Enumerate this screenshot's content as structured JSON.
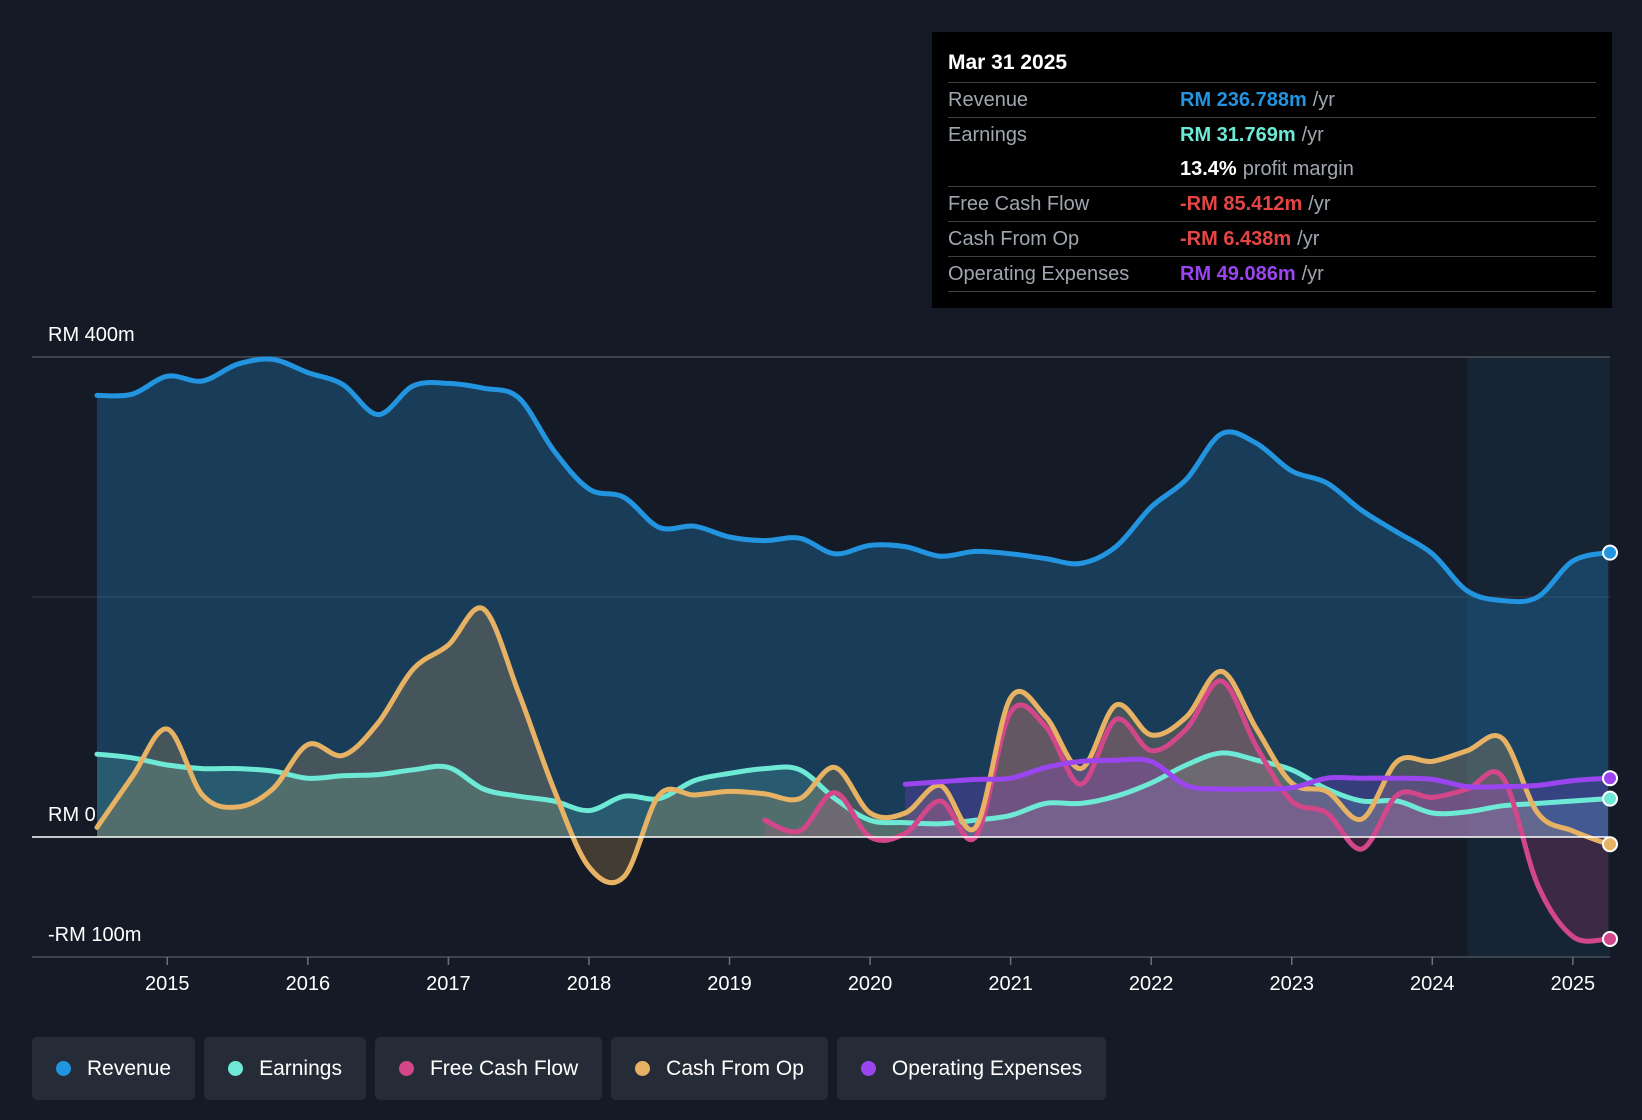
{
  "tooltip": {
    "date": "Mar 31 2025",
    "rows": {
      "revenue": {
        "label": "Revenue",
        "value": "RM 236.788m",
        "unit": "/yr"
      },
      "earnings": {
        "label": "Earnings",
        "value": "RM 31.769m",
        "unit": "/yr"
      },
      "margin": {
        "value": "13.4%",
        "unit": "profit margin"
      },
      "fcf": {
        "label": "Free Cash Flow",
        "value": "-RM 85.412m",
        "unit": "/yr"
      },
      "cfo": {
        "label": "Cash From Op",
        "value": "-RM 6.438m",
        "unit": "/yr"
      },
      "opex": {
        "label": "Operating Expenses",
        "value": "RM 49.086m",
        "unit": "/yr"
      }
    }
  },
  "legend": {
    "revenue": "Revenue",
    "earnings": "Earnings",
    "fcf": "Free Cash Flow",
    "cfo": "Cash From Op",
    "opex": "Operating Expenses"
  },
  "colors": {
    "revenue": "#2394df",
    "earnings": "#6ee9d5",
    "fcf": "#d2468a",
    "cfo": "#e7b264",
    "opex": "#9b45f0",
    "negative": "#e64545",
    "white": "#ffffff"
  },
  "chart_data": {
    "type": "line",
    "title": "",
    "xlabel": "",
    "ylabel": "",
    "xlim": [
      2014.5,
      2025.25
    ],
    "ylim": [
      -100,
      400
    ],
    "y_labels": [
      "RM 400m",
      "RM 0",
      "-RM 100m"
    ],
    "y_label_values": [
      400,
      0,
      -100
    ],
    "x_ticks": [
      "2015",
      "2016",
      "2017",
      "2018",
      "2019",
      "2020",
      "2021",
      "2022",
      "2023",
      "2024",
      "2025"
    ],
    "x_tick_values": [
      2015,
      2016,
      2017,
      2018,
      2019,
      2020,
      2021,
      2022,
      2023,
      2024,
      2025
    ],
    "highlight_start": 2024.25,
    "series": [
      {
        "name": "Revenue",
        "key": "revenue",
        "x": [
          2014.5,
          2014.75,
          2015.0,
          2015.25,
          2015.5,
          2015.75,
          2016.0,
          2016.25,
          2016.5,
          2016.75,
          2017.0,
          2017.25,
          2017.5,
          2017.75,
          2018.0,
          2018.25,
          2018.5,
          2018.75,
          2019.0,
          2019.25,
          2019.5,
          2019.75,
          2020.0,
          2020.25,
          2020.5,
          2020.75,
          2021.0,
          2021.25,
          2021.5,
          2021.75,
          2022.0,
          2022.25,
          2022.5,
          2022.75,
          2023.0,
          2023.25,
          2023.5,
          2023.75,
          2024.0,
          2024.25,
          2024.5,
          2024.75,
          2025.0,
          2025.25
        ],
        "values": [
          368,
          369,
          384,
          380,
          394,
          398,
          387,
          377,
          352,
          376,
          378,
          374,
          366,
          322,
          290,
          283,
          258,
          259,
          250,
          247,
          249,
          236,
          243,
          242,
          234,
          238,
          236,
          232,
          228,
          242,
          275,
          298,
          336,
          328,
          305,
          295,
          272,
          254,
          236,
          205,
          197,
          200,
          230,
          237
        ]
      },
      {
        "name": "Earnings",
        "key": "earnings",
        "x": [
          2014.5,
          2014.75,
          2015.0,
          2015.25,
          2015.5,
          2015.75,
          2016.0,
          2016.25,
          2016.5,
          2016.75,
          2017.0,
          2017.25,
          2017.5,
          2017.75,
          2018.0,
          2018.25,
          2018.5,
          2018.75,
          2019.0,
          2019.25,
          2019.5,
          2019.75,
          2020.0,
          2020.25,
          2020.5,
          2020.75,
          2021.0,
          2021.25,
          2021.5,
          2021.75,
          2022.0,
          2022.25,
          2022.5,
          2022.75,
          2023.0,
          2023.25,
          2023.5,
          2023.75,
          2024.0,
          2024.25,
          2024.5,
          2024.75,
          2025.0,
          2025.25
        ],
        "values": [
          69,
          66,
          60,
          57,
          57,
          55,
          49,
          51,
          52,
          56,
          58,
          40,
          34,
          30,
          22,
          34,
          32,
          47,
          53,
          57,
          56,
          32,
          14,
          12,
          11,
          14,
          18,
          28,
          28,
          34,
          45,
          60,
          70,
          64,
          56,
          40,
          30,
          30,
          20,
          21,
          26,
          28,
          30,
          32
        ]
      },
      {
        "name": "Free Cash Flow",
        "key": "fcf",
        "x": [
          2019.25,
          2019.5,
          2019.75,
          2020.0,
          2020.25,
          2020.5,
          2020.75,
          2021.0,
          2021.25,
          2021.5,
          2021.75,
          2022.0,
          2022.25,
          2022.5,
          2022.75,
          2023.0,
          2023.25,
          2023.5,
          2023.75,
          2024.0,
          2024.25,
          2024.5,
          2024.75,
          2025.0,
          2025.25
        ],
        "values": [
          14,
          5,
          37,
          0,
          3,
          30,
          0,
          104,
          92,
          44,
          98,
          72,
          90,
          130,
          75,
          30,
          20,
          -10,
          35,
          33,
          40,
          50,
          -40,
          -83,
          -85
        ]
      },
      {
        "name": "Cash From Op",
        "key": "cfo",
        "x": [
          2014.5,
          2014.75,
          2015.0,
          2015.25,
          2015.5,
          2015.75,
          2016.0,
          2016.25,
          2016.5,
          2016.75,
          2017.0,
          2017.25,
          2017.5,
          2017.75,
          2018.0,
          2018.25,
          2018.5,
          2018.75,
          2019.0,
          2019.25,
          2019.5,
          2019.75,
          2020.0,
          2020.25,
          2020.5,
          2020.75,
          2021.0,
          2021.25,
          2021.5,
          2021.75,
          2022.0,
          2022.25,
          2022.5,
          2022.75,
          2023.0,
          2023.25,
          2023.5,
          2023.75,
          2024.0,
          2024.25,
          2024.5,
          2024.75,
          2025.0,
          2025.25
        ],
        "values": [
          8,
          50,
          90,
          35,
          25,
          40,
          77,
          68,
          95,
          140,
          160,
          190,
          120,
          40,
          -25,
          -33,
          35,
          35,
          38,
          36,
          32,
          58,
          20,
          20,
          43,
          8,
          116,
          100,
          57,
          110,
          85,
          100,
          138,
          90,
          45,
          38,
          15,
          63,
          63,
          72,
          82,
          20,
          5,
          -6
        ]
      },
      {
        "name": "Operating Expenses",
        "key": "opex",
        "x": [
          2020.25,
          2020.5,
          2020.75,
          2021.0,
          2021.25,
          2021.5,
          2021.75,
          2022.0,
          2022.25,
          2022.5,
          2022.75,
          2023.0,
          2023.25,
          2023.5,
          2023.75,
          2024.0,
          2024.25,
          2024.5,
          2024.75,
          2025.0,
          2025.25
        ],
        "values": [
          44,
          46,
          48,
          49,
          58,
          63,
          64,
          63,
          43,
          40,
          40,
          41,
          49,
          49,
          49,
          48,
          42,
          42,
          43,
          47,
          49
        ]
      }
    ]
  }
}
